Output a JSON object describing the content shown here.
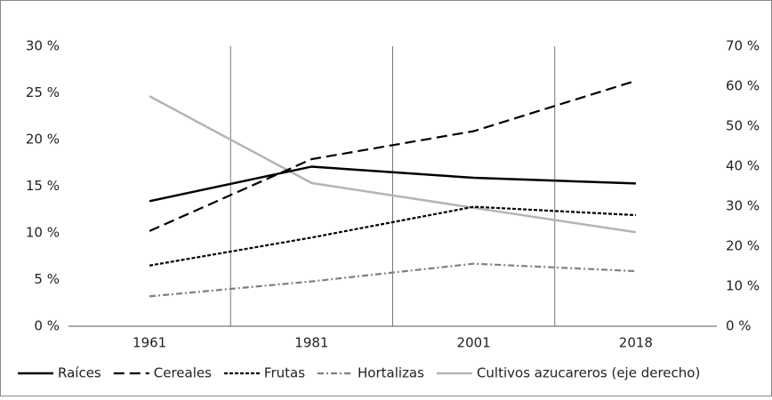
{
  "chart_data": {
    "type": "line",
    "categories": [
      "1961",
      "1981",
      "2001",
      "2018"
    ],
    "series": [
      {
        "name": "Raíces",
        "color": "#000000",
        "dash": "solid",
        "values": [
          13.4,
          17.1,
          15.9,
          15.3
        ]
      },
      {
        "name": "Cereales",
        "color": "#000000",
        "dash": "dashed",
        "values": [
          10.2,
          17.9,
          20.9,
          26.3
        ]
      },
      {
        "name": "Frutas",
        "color": "#000000",
        "dash": "dotted",
        "values": [
          6.5,
          9.5,
          12.8,
          11.9
        ]
      },
      {
        "name": "Hortalizas",
        "color": "#808080",
        "dash": "dashdot",
        "values": [
          3.2,
          4.8,
          6.7,
          5.9
        ]
      },
      {
        "name": "Cultivos azucareros (eje derecho)",
        "color": "#b4b4b4",
        "dash": "solid",
        "axis": "y2",
        "values": [
          57.5,
          35.8,
          29.6,
          23.5
        ]
      }
    ],
    "ylim": [
      0,
      30
    ],
    "yticks": [
      {
        "value": 0,
        "label": "0 %"
      },
      {
        "value": 5,
        "label": "5 %"
      },
      {
        "value": 10,
        "label": "10 %"
      },
      {
        "value": 15,
        "label": "15 %"
      },
      {
        "value": 20,
        "label": "20 %"
      },
      {
        "value": 25,
        "label": "25 %"
      },
      {
        "value": 30,
        "label": "30 %"
      }
    ],
    "y2lim": [
      0,
      70
    ],
    "y2ticks": [
      {
        "value": 0,
        "label": "0 %"
      },
      {
        "value": 10,
        "label": "10 %"
      },
      {
        "value": 20,
        "label": "20 %"
      },
      {
        "value": 30,
        "label": "30 %"
      },
      {
        "value": 40,
        "label": "40 %"
      },
      {
        "value": 50,
        "label": "50 %"
      },
      {
        "value": 60,
        "label": "60 %"
      },
      {
        "value": 70,
        "label": "70 %"
      }
    ],
    "legend": "bottom"
  }
}
